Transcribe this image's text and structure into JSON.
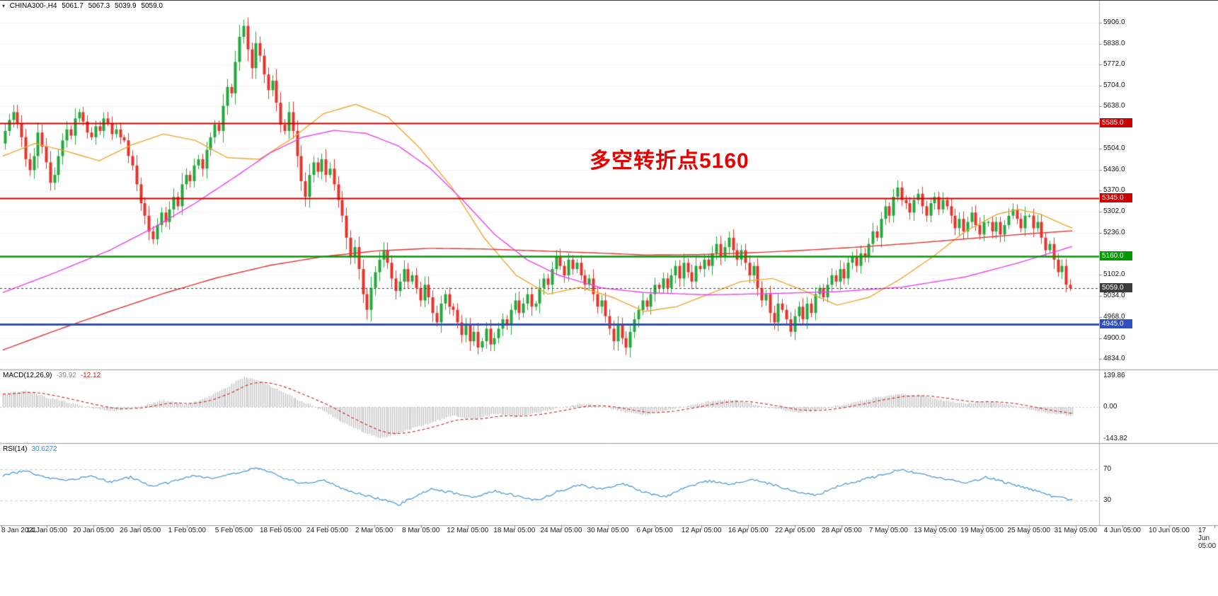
{
  "header": {
    "symbol_period": "CHINA300-,H4",
    "open": "5061.7",
    "high": "5067.3",
    "low": "5039.9",
    "close": "5059.0",
    "collapse_icon": "▾"
  },
  "annotation": {
    "text": "多空转折点5160",
    "color": "#e80000"
  },
  "colors": {
    "up_candle": "#22a93c",
    "down_candle": "#e5342c",
    "ma_fast": "#f0a630",
    "ma_mid": "#e845e8",
    "ma_slow": "#e03434",
    "level_red": "#cc0000",
    "level_green": "#009900",
    "level_blue": "#2e4fc0",
    "current_price": "#3c3c3c",
    "macd_hist": "#c4c4c4",
    "macd_signal": "#cc3333",
    "rsi_line": "#4f9bd7",
    "grid": "#f2f2f2",
    "separator": "#9a9a9a"
  },
  "indicators": {
    "macd": {
      "name": "MACD(12,26,9)",
      "value_main": "-39.92",
      "value_signal": "-12.12",
      "axis": [
        {
          "label": "139.86",
          "value": 139.86
        },
        {
          "label": "0.00",
          "value": 0
        },
        {
          "label": "-143.82",
          "value": -143.82
        }
      ]
    },
    "rsi": {
      "name": "RSI(14)",
      "value": "30.6272",
      "axis": [
        {
          "label": "70",
          "value": 70
        },
        {
          "label": "30",
          "value": 30
        }
      ]
    }
  },
  "chart_data": {
    "type": "candlestick",
    "symbol": "CHINA300-",
    "timeframe": "H4",
    "price_axis_range": [
      4834,
      5906
    ],
    "price_ticks": [
      5906,
      5838,
      5772,
      5704,
      5638,
      5504,
      5436,
      5370,
      5302,
      5236,
      5102,
      5034,
      4968,
      4900,
      4834
    ],
    "x_labels": [
      "8 Jan 2021",
      "14 Jan 05:00",
      "20 Jan 05:00",
      "26 Jan 05:00",
      "1 Feb 05:00",
      "5 Feb 05:00",
      "18 Feb 05:00",
      "24 Feb 05:00",
      "2 Mar 05:00",
      "8 Mar 05:00",
      "12 Mar 05:00",
      "18 Mar 05:00",
      "24 Mar 05:00",
      "30 Mar 05:00",
      "6 Apr 05:00",
      "12 Apr 05:00",
      "16 Apr 05:00",
      "22 Apr 05:00",
      "28 Apr 05:00",
      "7 May 05:00",
      "13 May 05:00",
      "19 May 05:00",
      "25 May 05:00",
      "31 May 05:00",
      "4 Jun 05:00",
      "10 Jun 05:00",
      "17 Jun 05:00"
    ],
    "levels": [
      {
        "label": "5585.0",
        "price": 5585,
        "color": "#cc0000",
        "width": 2,
        "dashed": false
      },
      {
        "label": "5345.0",
        "price": 5345,
        "color": "#cc0000",
        "width": 2,
        "dashed": false
      },
      {
        "label": "5160.0",
        "price": 5160,
        "color": "#009900",
        "width": 2.5,
        "dashed": false
      },
      {
        "label": "5059.0",
        "price": 5059,
        "color": "#3c3c3c",
        "width": 1,
        "dashed": true
      },
      {
        "label": "4945.0",
        "price": 4945,
        "color": "#2e4fc0",
        "width": 3,
        "dashed": false
      }
    ],
    "first_open": 5520,
    "closes": [
      5560,
      5595,
      5620,
      5585,
      5540,
      5470,
      5435,
      5480,
      5555,
      5510,
      5460,
      5395,
      5420,
      5480,
      5530,
      5565,
      5545,
      5600,
      5620,
      5590,
      5555,
      5540,
      5575,
      5560,
      5600,
      5585,
      5550,
      5565,
      5540,
      5530,
      5480,
      5450,
      5390,
      5330,
      5290,
      5240,
      5215,
      5260,
      5300,
      5270,
      5310,
      5350,
      5320,
      5390,
      5420,
      5400,
      5450,
      5470,
      5440,
      5500,
      5540,
      5580,
      5560,
      5640,
      5700,
      5680,
      5780,
      5860,
      5895,
      5820,
      5760,
      5840,
      5800,
      5740,
      5690,
      5720,
      5650,
      5580,
      5560,
      5620,
      5560,
      5480,
      5400,
      5350,
      5420,
      5460,
      5430,
      5470,
      5420,
      5440,
      5390,
      5340,
      5290,
      5220,
      5160,
      5190,
      5120,
      5040,
      4990,
      5060,
      5110,
      5150,
      5180,
      5140,
      5090,
      5050,
      5080,
      5120,
      5080,
      5100,
      5060,
      5020,
      5070,
      5030,
      4980,
      4950,
      5010,
      5040,
      5000,
      4990,
      4950,
      4910,
      4940,
      4890,
      4920,
      4870,
      4890,
      4930,
      4880,
      4900,
      4930,
      4960,
      4940,
      4990,
      5020,
      4980,
      5010,
      5040,
      5000,
      5010,
      5060,
      5090,
      5070,
      5120,
      5160,
      5130,
      5100,
      5150,
      5120,
      5140,
      5100,
      5070,
      5090,
      5040,
      5000,
      5020,
      4970,
      4930,
      4890,
      4940,
      4900,
      4870,
      4920,
      4960,
      4990,
      5020,
      5000,
      5040,
      5070,
      5060,
      5090,
      5060,
      5100,
      5130,
      5090,
      5140,
      5110,
      5080,
      5130,
      5120,
      5150,
      5130,
      5170,
      5200,
      5160,
      5190,
      5220,
      5180,
      5150,
      5180,
      5140,
      5100,
      5130,
      5060,
      5020,
      5040,
      4980,
      4950,
      5010,
      4990,
      4960,
      4920,
      4970,
      5000,
      4960,
      5010,
      4980,
      5040,
      5060,
      5030,
      5070,
      5100,
      5080,
      5120,
      5090,
      5140,
      5160,
      5130,
      5170,
      5160,
      5200,
      5240,
      5220,
      5280,
      5320,
      5290,
      5350,
      5380,
      5340,
      5330,
      5300,
      5340,
      5360,
      5320,
      5290,
      5330,
      5350,
      5310,
      5340,
      5320,
      5290,
      5250,
      5280,
      5240,
      5270,
      5300,
      5260,
      5230,
      5270,
      5270,
      5240,
      5270,
      5230,
      5260,
      5290,
      5310,
      5280,
      5250,
      5290,
      5290,
      5250,
      5270,
      5220,
      5180,
      5200,
      5150,
      5110,
      5130,
      5070,
      5059
    ],
    "moving_averages": [
      {
        "name": "ma-fast-orange",
        "color": "#f0a630",
        "anchors": [
          [
            0,
            5480
          ],
          [
            0.03,
            5520
          ],
          [
            0.06,
            5495
          ],
          [
            0.09,
            5465
          ],
          [
            0.12,
            5515
          ],
          [
            0.15,
            5550
          ],
          [
            0.18,
            5530
          ],
          [
            0.21,
            5475
          ],
          [
            0.24,
            5470
          ],
          [
            0.27,
            5535
          ],
          [
            0.3,
            5615
          ],
          [
            0.33,
            5645
          ],
          [
            0.36,
            5605
          ],
          [
            0.39,
            5505
          ],
          [
            0.42,
            5380
          ],
          [
            0.45,
            5220
          ],
          [
            0.48,
            5100
          ],
          [
            0.51,
            5040
          ],
          [
            0.54,
            5062
          ],
          [
            0.57,
            5030
          ],
          [
            0.6,
            4985
          ],
          [
            0.63,
            5000
          ],
          [
            0.66,
            5040
          ],
          [
            0.69,
            5080
          ],
          [
            0.72,
            5090
          ],
          [
            0.75,
            5050
          ],
          [
            0.78,
            5005
          ],
          [
            0.81,
            5030
          ],
          [
            0.84,
            5090
          ],
          [
            0.87,
            5160
          ],
          [
            0.9,
            5240
          ],
          [
            0.93,
            5295
          ],
          [
            0.95,
            5310
          ],
          [
            0.97,
            5295
          ],
          [
            1,
            5250
          ]
        ]
      },
      {
        "name": "ma-mid-magenta",
        "color": "#e845e8",
        "anchors": [
          [
            0,
            5045
          ],
          [
            0.05,
            5110
          ],
          [
            0.1,
            5180
          ],
          [
            0.14,
            5250
          ],
          [
            0.18,
            5330
          ],
          [
            0.22,
            5420
          ],
          [
            0.25,
            5490
          ],
          [
            0.28,
            5540
          ],
          [
            0.31,
            5562
          ],
          [
            0.34,
            5552
          ],
          [
            0.37,
            5512
          ],
          [
            0.4,
            5440
          ],
          [
            0.43,
            5340
          ],
          [
            0.46,
            5230
          ],
          [
            0.49,
            5150
          ],
          [
            0.52,
            5100
          ],
          [
            0.56,
            5060
          ],
          [
            0.6,
            5045
          ],
          [
            0.66,
            5038
          ],
          [
            0.72,
            5042
          ],
          [
            0.78,
            5048
          ],
          [
            0.84,
            5062
          ],
          [
            0.9,
            5095
          ],
          [
            0.95,
            5140
          ],
          [
            1,
            5192
          ]
        ]
      },
      {
        "name": "ma-slow-red",
        "color": "#e03434",
        "anchors": [
          [
            0,
            4862
          ],
          [
            0.05,
            4925
          ],
          [
            0.1,
            4985
          ],
          [
            0.15,
            5042
          ],
          [
            0.2,
            5092
          ],
          [
            0.25,
            5132
          ],
          [
            0.3,
            5160
          ],
          [
            0.35,
            5178
          ],
          [
            0.4,
            5186
          ],
          [
            0.45,
            5184
          ],
          [
            0.5,
            5178
          ],
          [
            0.55,
            5172
          ],
          [
            0.6,
            5165
          ],
          [
            0.65,
            5166
          ],
          [
            0.7,
            5172
          ],
          [
            0.75,
            5180
          ],
          [
            0.8,
            5190
          ],
          [
            0.85,
            5202
          ],
          [
            0.9,
            5216
          ],
          [
            0.95,
            5230
          ],
          [
            1,
            5242
          ]
        ]
      }
    ],
    "macd_anchors": [
      [
        0,
        55
      ],
      [
        0.02,
        75
      ],
      [
        0.04,
        45
      ],
      [
        0.07,
        10
      ],
      [
        0.1,
        -20
      ],
      [
        0.13,
        5
      ],
      [
        0.15,
        30
      ],
      [
        0.17,
        10
      ],
      [
        0.19,
        40
      ],
      [
        0.21,
        90
      ],
      [
        0.225,
        135
      ],
      [
        0.24,
        120
      ],
      [
        0.26,
        70
      ],
      [
        0.28,
        25
      ],
      [
        0.3,
        -20
      ],
      [
        0.32,
        -75
      ],
      [
        0.34,
        -120
      ],
      [
        0.355,
        -140
      ],
      [
        0.375,
        -110
      ],
      [
        0.4,
        -70
      ],
      [
        0.42,
        -40
      ],
      [
        0.44,
        -55
      ],
      [
        0.46,
        -30
      ],
      [
        0.48,
        -45
      ],
      [
        0.5,
        -25
      ],
      [
        0.52,
        -5
      ],
      [
        0.54,
        15
      ],
      [
        0.56,
        5
      ],
      [
        0.58,
        -20
      ],
      [
        0.6,
        -35
      ],
      [
        0.62,
        -15
      ],
      [
        0.64,
        5
      ],
      [
        0.66,
        25
      ],
      [
        0.68,
        35
      ],
      [
        0.7,
        15
      ],
      [
        0.72,
        -5
      ],
      [
        0.74,
        -25
      ],
      [
        0.76,
        -15
      ],
      [
        0.78,
        5
      ],
      [
        0.8,
        25
      ],
      [
        0.82,
        45
      ],
      [
        0.84,
        60
      ],
      [
        0.86,
        50
      ],
      [
        0.88,
        30
      ],
      [
        0.9,
        15
      ],
      [
        0.92,
        25
      ],
      [
        0.94,
        10
      ],
      [
        0.96,
        -10
      ],
      [
        0.98,
        -30
      ],
      [
        1,
        -40
      ]
    ],
    "rsi_anchors": [
      [
        0,
        62
      ],
      [
        0.02,
        68
      ],
      [
        0.04,
        60
      ],
      [
        0.06,
        55
      ],
      [
        0.08,
        62
      ],
      [
        0.1,
        54
      ],
      [
        0.12,
        60
      ],
      [
        0.14,
        48
      ],
      [
        0.16,
        55
      ],
      [
        0.18,
        62
      ],
      [
        0.2,
        58
      ],
      [
        0.22,
        66
      ],
      [
        0.24,
        72
      ],
      [
        0.26,
        60
      ],
      [
        0.28,
        52
      ],
      [
        0.3,
        56
      ],
      [
        0.32,
        44
      ],
      [
        0.34,
        36
      ],
      [
        0.36,
        30
      ],
      [
        0.37,
        24
      ],
      [
        0.38,
        32
      ],
      [
        0.4,
        45
      ],
      [
        0.42,
        40
      ],
      [
        0.44,
        34
      ],
      [
        0.46,
        42
      ],
      [
        0.48,
        36
      ],
      [
        0.5,
        30
      ],
      [
        0.52,
        42
      ],
      [
        0.54,
        50
      ],
      [
        0.56,
        44
      ],
      [
        0.58,
        52
      ],
      [
        0.6,
        40
      ],
      [
        0.62,
        35
      ],
      [
        0.64,
        48
      ],
      [
        0.66,
        55
      ],
      [
        0.68,
        50
      ],
      [
        0.7,
        58
      ],
      [
        0.72,
        50
      ],
      [
        0.74,
        42
      ],
      [
        0.76,
        36
      ],
      [
        0.78,
        48
      ],
      [
        0.8,
        55
      ],
      [
        0.82,
        62
      ],
      [
        0.84,
        70
      ],
      [
        0.86,
        64
      ],
      [
        0.88,
        58
      ],
      [
        0.9,
        52
      ],
      [
        0.92,
        60
      ],
      [
        0.94,
        52
      ],
      [
        0.96,
        45
      ],
      [
        0.98,
        36
      ],
      [
        1,
        30.6
      ]
    ]
  }
}
